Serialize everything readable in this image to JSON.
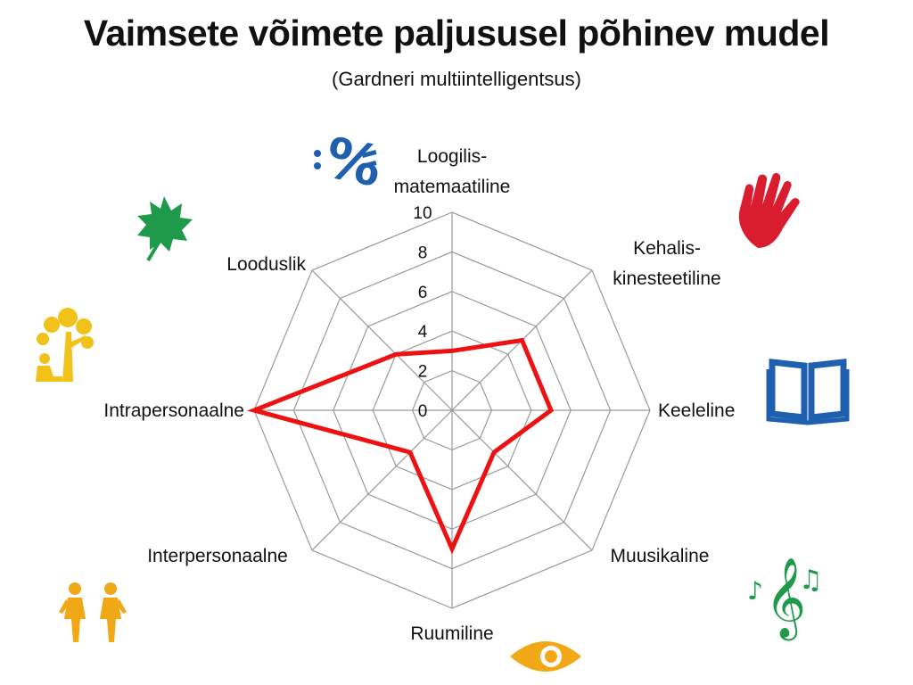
{
  "header": {
    "title": "Vaimsete võimete paljususel põhinev mudel",
    "subtitle": "(Gardneri multiintelligentsus)"
  },
  "chart_data": {
    "type": "radar",
    "categories": [
      [
        "Loogilis-",
        "matemaatiline"
      ],
      [
        "Kehalis-",
        "kinesteetiline"
      ],
      [
        "Keeleline"
      ],
      [
        "Muusikaline"
      ],
      [
        "Ruumiline"
      ],
      [
        "Interpersonaalne"
      ],
      [
        "Intrapersonaalne"
      ],
      [
        "Looduslik"
      ]
    ],
    "series": [
      {
        "values": [
          3,
          5,
          5,
          3,
          7,
          3,
          10,
          4
        ],
        "color": "#ee1111"
      }
    ],
    "rlim": [
      0,
      10
    ],
    "ticks": [
      "0",
      "2",
      "4",
      "6",
      "8",
      "10"
    ],
    "grid": true,
    "icons": [
      {
        "name": "percent-math-icon",
        "color": "#1f5fb0"
      },
      {
        "name": "hand-icon",
        "color": "#d91c2e"
      },
      {
        "name": "book-icon",
        "color": "#1f5fb0"
      },
      {
        "name": "music-notes-icon",
        "color": "#1e9a4a"
      },
      {
        "name": "eye-icon",
        "color": "#f0a817"
      },
      {
        "name": "two-people-icon",
        "color": "#f0a817"
      },
      {
        "name": "person-under-tree-icon",
        "color": "#f0c21a"
      },
      {
        "name": "leaf-icon",
        "color": "#1e9a4a"
      }
    ]
  }
}
